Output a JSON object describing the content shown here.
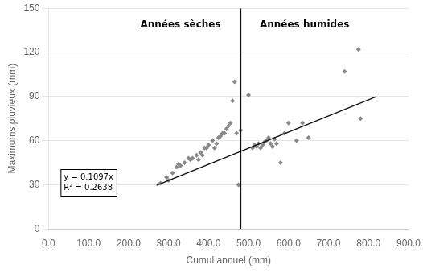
{
  "chart_data": {
    "type": "scatter",
    "xlabel": "Cumul annuel (mm)",
    "ylabel": "Maximums pluvieux (mm)",
    "series": [
      {
        "type": "scatter",
        "marker": "diamond",
        "color": "#888888",
        "x": [
          280,
          295,
          300,
          310,
          320,
          325,
          330,
          340,
          350,
          355,
          360,
          370,
          375,
          380,
          385,
          390,
          395,
          400,
          410,
          415,
          420,
          425,
          430,
          435,
          440,
          445,
          450,
          455,
          460,
          465,
          470,
          475,
          480,
          500,
          510,
          515,
          520,
          525,
          530,
          535,
          540,
          545,
          550,
          555,
          560,
          565,
          570,
          580,
          590,
          600,
          620,
          635,
          650,
          740,
          775,
          780
        ],
        "values": [
          31,
          35,
          33,
          38,
          42,
          44,
          43,
          45,
          48,
          47,
          48,
          50,
          47,
          52,
          50,
          55,
          55,
          57,
          60,
          55,
          58,
          62,
          63,
          65,
          65,
          68,
          70,
          72,
          87,
          100,
          65,
          30,
          67,
          91,
          55,
          57,
          56,
          58,
          55,
          57,
          59,
          60,
          62,
          58,
          56,
          61,
          58,
          45,
          65,
          72,
          60,
          72,
          62,
          107,
          122,
          75
        ]
      },
      {
        "type": "line",
        "color": "#111111",
        "x": [
          270,
          820
        ],
        "values": [
          29.619,
          89.954
        ]
      },
      {
        "type": "line",
        "color": "#111111",
        "x": [
          480,
          480
        ],
        "values": [
          0,
          150
        ]
      }
    ],
    "annotations": [
      {
        "text": "Années sèches",
        "x": 330,
        "y": 142
      },
      {
        "text": "Années humides",
        "x": 640,
        "y": 142
      }
    ],
    "equation_box": {
      "lines": [
        "y = 0.1097x",
        "R² = 0.2638"
      ],
      "x": 30,
      "y": 22
    },
    "xlim": [
      0,
      900
    ],
    "ylim": [
      0,
      150
    ],
    "xticks": [
      {
        "value": 0,
        "label": "0.0"
      },
      {
        "value": 100,
        "label": "100.0"
      },
      {
        "value": 200,
        "label": "200.0"
      },
      {
        "value": 300,
        "label": "300.0"
      },
      {
        "value": 400,
        "label": "400.0"
      },
      {
        "value": 500,
        "label": "500.0"
      },
      {
        "value": 600,
        "label": "600.0"
      },
      {
        "value": 700,
        "label": "700.0"
      },
      {
        "value": 800,
        "label": "800.0"
      },
      {
        "value": 900,
        "label": "900.0"
      }
    ],
    "yticks": [
      0,
      30,
      60,
      90,
      120,
      150
    ],
    "grid": "y"
  }
}
